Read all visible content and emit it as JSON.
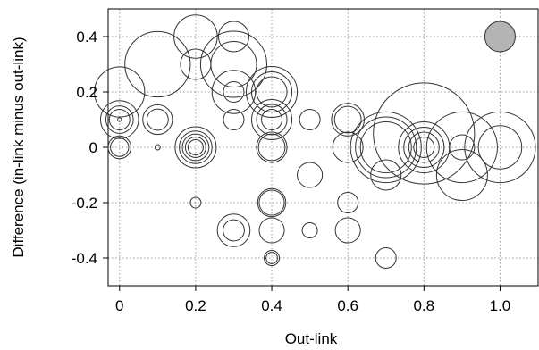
{
  "chart_data": {
    "type": "scatter",
    "xlabel": "Out-link",
    "ylabel": "Difference (in-link minus out-link)",
    "xlim": [
      -0.03,
      1.1
    ],
    "ylim": [
      -0.5,
      0.5
    ],
    "xticks": [
      "0",
      "0.2",
      "0.4",
      "0.6",
      "0.8",
      "1.0"
    ],
    "xtick_values": [
      0,
      0.2,
      0.4,
      0.6,
      0.8,
      1.0
    ],
    "yticks": [
      "-0.4",
      "-0.2",
      "0",
      "0.2",
      "0.4"
    ],
    "ytick_values": [
      -0.4,
      -0.2,
      0,
      0.2,
      0.4
    ],
    "grid": true,
    "grid_style": "dotted",
    "bubble_stroke": "#333333",
    "highlight_fill": "#b4b4b4",
    "points": [
      {
        "x": 0,
        "y": 0.2,
        "size": 0.066
      },
      {
        "x": 0,
        "y": 0.1,
        "size": 0.05
      },
      {
        "x": 0,
        "y": 0.1,
        "size": 0.036
      },
      {
        "x": 0,
        "y": 0.1,
        "size": 0.027
      },
      {
        "x": 0,
        "y": 0.1,
        "size": 0.005
      },
      {
        "x": 0,
        "y": 0,
        "size": 0.03
      },
      {
        "x": 0,
        "y": 0,
        "size": 0.024
      },
      {
        "x": 0.1,
        "y": 0.3,
        "size": 0.086
      },
      {
        "x": 0.1,
        "y": 0.1,
        "size": 0.039
      },
      {
        "x": 0.1,
        "y": 0.1,
        "size": 0.028
      },
      {
        "x": 0.1,
        "y": 0,
        "size": 0.007
      },
      {
        "x": 0.2,
        "y": 0.4,
        "size": 0.057
      },
      {
        "x": 0.2,
        "y": 0.3,
        "size": 0.04
      },
      {
        "x": 0.2,
        "y": 0,
        "size": 0.054
      },
      {
        "x": 0.2,
        "y": 0,
        "size": 0.043
      },
      {
        "x": 0.2,
        "y": 0,
        "size": 0.035
      },
      {
        "x": 0.2,
        "y": 0,
        "size": 0.027
      },
      {
        "x": 0.2,
        "y": 0,
        "size": 0.02
      },
      {
        "x": 0.2,
        "y": -0.2,
        "size": 0.014
      },
      {
        "x": 0.3,
        "y": 0.4,
        "size": 0.04
      },
      {
        "x": 0.3,
        "y": 0.3,
        "size": 0.087
      },
      {
        "x": 0.3,
        "y": 0.3,
        "size": 0.06
      },
      {
        "x": 0.3,
        "y": 0.2,
        "size": 0.057
      },
      {
        "x": 0.3,
        "y": 0.2,
        "size": 0.027
      },
      {
        "x": 0.3,
        "y": 0.1,
        "size": 0.027
      },
      {
        "x": 0.3,
        "y": -0.3,
        "size": 0.043
      },
      {
        "x": 0.3,
        "y": -0.3,
        "size": 0.028
      },
      {
        "x": 0.4,
        "y": 0.2,
        "size": 0.067
      },
      {
        "x": 0.4,
        "y": 0.2,
        "size": 0.053
      },
      {
        "x": 0.4,
        "y": 0.2,
        "size": 0.04
      },
      {
        "x": 0.4,
        "y": 0.1,
        "size": 0.053
      },
      {
        "x": 0.4,
        "y": 0.1,
        "size": 0.04
      },
      {
        "x": 0.4,
        "y": 0.1,
        "size": 0.027
      },
      {
        "x": 0.4,
        "y": 0,
        "size": 0.04
      },
      {
        "x": 0.4,
        "y": 0,
        "size": 0.035
      },
      {
        "x": 0.4,
        "y": -0.2,
        "size": 0.037
      },
      {
        "x": 0.4,
        "y": -0.2,
        "size": 0.033
      },
      {
        "x": 0.4,
        "y": -0.3,
        "size": 0.033
      },
      {
        "x": 0.4,
        "y": -0.4,
        "size": 0.02
      },
      {
        "x": 0.4,
        "y": -0.4,
        "size": 0.015
      },
      {
        "x": 0.5,
        "y": 0.1,
        "size": 0.027
      },
      {
        "x": 0.5,
        "y": -0.1,
        "size": 0.033
      },
      {
        "x": 0.5,
        "y": -0.3,
        "size": 0.02
      },
      {
        "x": 0.6,
        "y": 0.1,
        "size": 0.043
      },
      {
        "x": 0.6,
        "y": 0.1,
        "size": 0.035
      },
      {
        "x": 0.6,
        "y": 0,
        "size": 0.04
      },
      {
        "x": 0.6,
        "y": -0.2,
        "size": 0.027
      },
      {
        "x": 0.6,
        "y": -0.3,
        "size": 0.033
      },
      {
        "x": 0.7,
        "y": 0,
        "size": 0.093
      },
      {
        "x": 0.7,
        "y": 0,
        "size": 0.08
      },
      {
        "x": 0.7,
        "y": 0,
        "size": 0.067
      },
      {
        "x": 0.7,
        "y": -0.1,
        "size": 0.04
      },
      {
        "x": 0.7,
        "y": -0.4,
        "size": 0.027
      },
      {
        "x": 0.8,
        "y": 0.05,
        "size": 0.133
      },
      {
        "x": 0.8,
        "y": 0,
        "size": 0.067
      },
      {
        "x": 0.8,
        "y": 0,
        "size": 0.053
      },
      {
        "x": 0.8,
        "y": 0,
        "size": 0.04
      },
      {
        "x": 0.8,
        "y": 0,
        "size": 0.027
      },
      {
        "x": 0.9,
        "y": 0,
        "size": 0.093
      },
      {
        "x": 0.9,
        "y": 0,
        "size": 0.033
      },
      {
        "x": 0.9,
        "y": -0.1,
        "size": 0.067
      },
      {
        "x": 1.0,
        "y": 0,
        "size": 0.093
      },
      {
        "x": 1.0,
        "y": 0,
        "size": 0.057
      },
      {
        "x": 1.0,
        "y": 0.4,
        "size": 0.04,
        "highlighted": true
      }
    ]
  }
}
